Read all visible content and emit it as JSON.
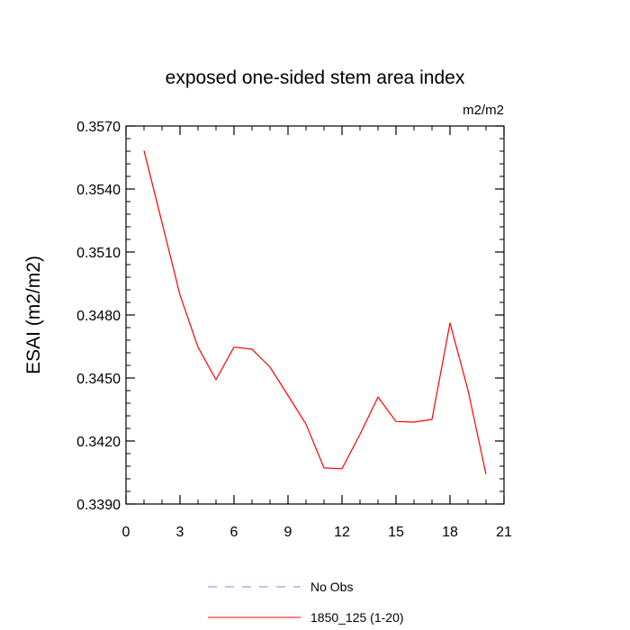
{
  "chart_data": {
    "type": "line",
    "title": "exposed one-sided stem area index",
    "ylabel": "ESAI  (m2/m2)",
    "units_label": "m2/m2",
    "xlim": [
      0,
      21
    ],
    "ylim": [
      0.339,
      0.357
    ],
    "x_ticks": [
      0,
      3,
      6,
      9,
      12,
      15,
      18,
      21
    ],
    "x_tick_labels": [
      "0",
      "3",
      "6",
      "9",
      "12",
      "15",
      "18",
      "21"
    ],
    "y_ticks": [
      0.339,
      0.342,
      0.345,
      0.348,
      0.351,
      0.354,
      0.357
    ],
    "y_tick_labels": [
      "0.3390",
      "0.3420",
      "0.3450",
      "0.3480",
      "0.3510",
      "0.3540",
      "0.3570"
    ],
    "grid": false,
    "legend_position": "bottom",
    "series": [
      {
        "name": "No Obs",
        "color": "#8080ff",
        "dash": true,
        "x": [],
        "values": []
      },
      {
        "name": "1850_125 (1-20)",
        "color": "#ff0000",
        "dash": false,
        "x": [
          1,
          2,
          3,
          4,
          5,
          6,
          7,
          8,
          9,
          10,
          11,
          12,
          13,
          14,
          15,
          16,
          17,
          18,
          19,
          20
        ],
        "values": [
          0.35583,
          0.3524,
          0.34895,
          0.34647,
          0.34492,
          0.34647,
          0.34637,
          0.34552,
          0.34417,
          0.3428,
          0.34072,
          0.34068,
          0.34232,
          0.34409,
          0.34293,
          0.3429,
          0.34303,
          0.34762,
          0.34442,
          0.34042
        ]
      }
    ]
  }
}
